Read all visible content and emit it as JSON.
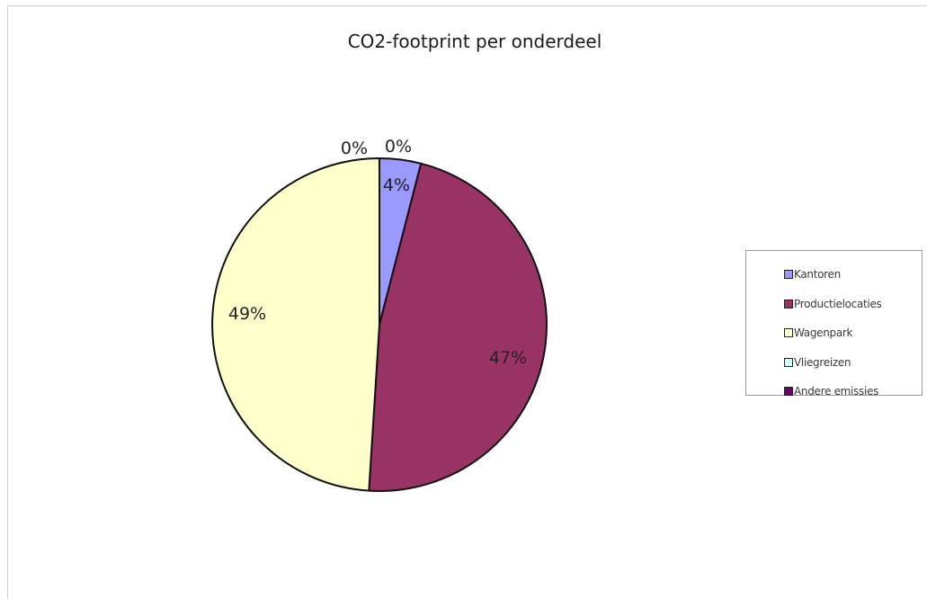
{
  "chart_data": {
    "type": "pie",
    "title": "CO2-footprint per onderdeel",
    "categories": [
      "Kantoren",
      "Productielocaties",
      "Wagenpark",
      "Vliegreizen",
      "Andere emissies"
    ],
    "values": [
      4,
      47,
      49,
      0,
      0
    ],
    "data_labels": [
      "4%",
      "47%",
      "49%",
      "0%",
      "0%"
    ],
    "colors": [
      "#9999ff",
      "#993366",
      "#ffffcc",
      "#ccffff",
      "#660066"
    ],
    "legend_position": "right"
  }
}
